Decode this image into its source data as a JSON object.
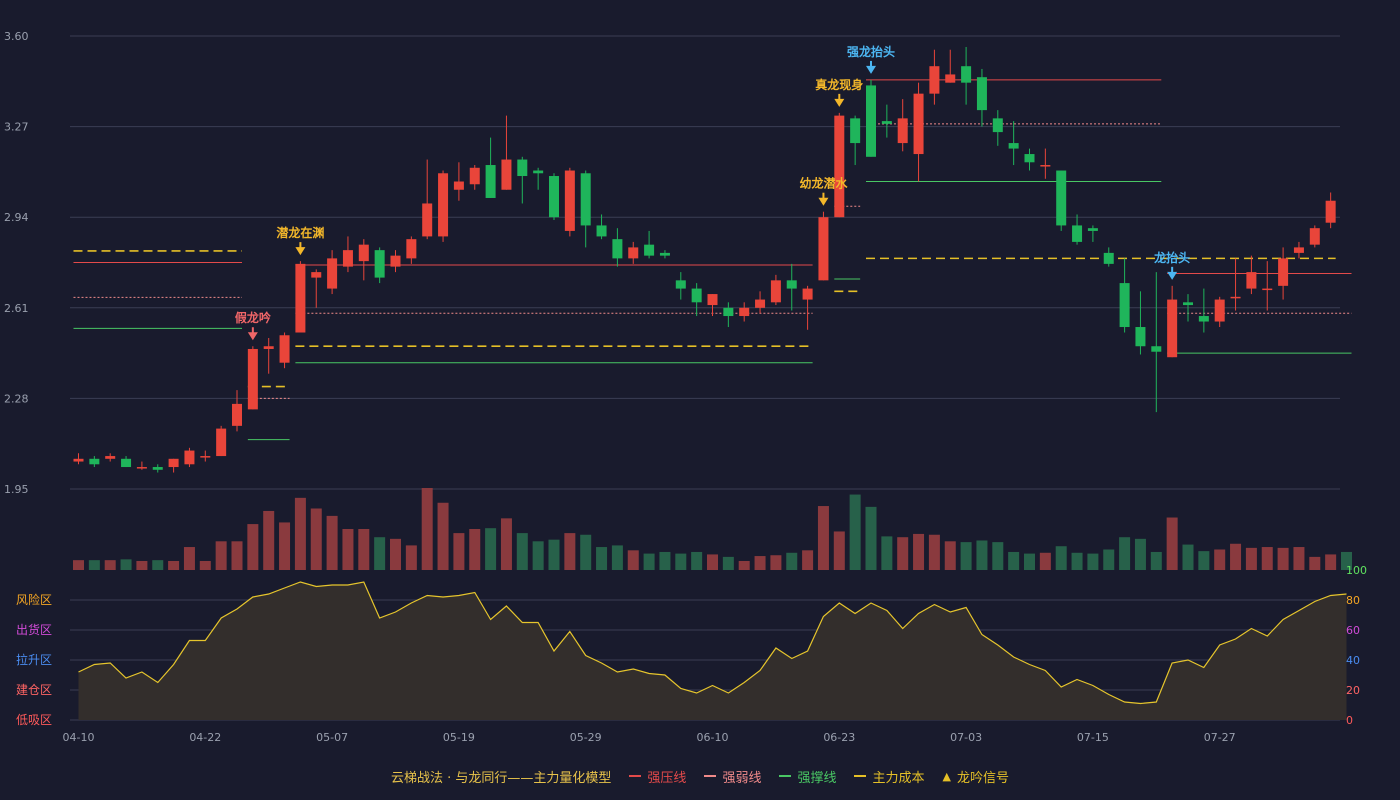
{
  "colors": {
    "background": "#191b2d",
    "up": "#e9453a",
    "down": "#1fb55b",
    "volume_up": "#8a3a3e",
    "volume_down": "#27614a",
    "grid": "#3b3e54",
    "axis_text": "#9aa0ae",
    "resist": "#e34a4a",
    "weak": "#f08a8a",
    "support": "#49c764",
    "cost": "#e5c027",
    "oscillator": "#e6c52c",
    "oscillator_fill": "#332e2c",
    "signal_gold": "#f3b72a",
    "signal_blue": "#4cb6f2",
    "signal_red": "#f06668"
  },
  "chart_data": {
    "type": "candlestick",
    "price_axis": {
      "ticks": [
        "3.60",
        "3.27",
        "2.94",
        "2.61",
        "2.28",
        "1.95"
      ],
      "ylim": [
        1.95,
        3.6
      ]
    },
    "x_tick_labels": [
      {
        "label": "04-10",
        "index": 0
      },
      {
        "label": "04-22",
        "index": 8
      },
      {
        "label": "05-07",
        "index": 16
      },
      {
        "label": "05-19",
        "index": 24
      },
      {
        "label": "05-29",
        "index": 32
      },
      {
        "label": "06-10",
        "index": 40
      },
      {
        "label": "06-23",
        "index": 48
      },
      {
        "label": "07-03",
        "index": 56
      },
      {
        "label": "07-15",
        "index": 64
      },
      {
        "label": "07-27",
        "index": 72
      }
    ],
    "candles": [
      [
        2.05,
        2.06,
        2.04,
        2.08
      ],
      [
        2.06,
        2.04,
        2.03,
        2.07
      ],
      [
        2.06,
        2.07,
        2.05,
        2.08
      ],
      [
        2.06,
        2.03,
        2.03,
        2.07
      ],
      [
        2.03,
        2.03,
        2.02,
        2.05
      ],
      [
        2.03,
        2.02,
        2.01,
        2.04
      ],
      [
        2.03,
        2.06,
        2.01,
        2.06
      ],
      [
        2.04,
        2.09,
        2.03,
        2.1
      ],
      [
        2.07,
        2.07,
        2.05,
        2.09
      ],
      [
        2.07,
        2.17,
        2.07,
        2.18
      ],
      [
        2.18,
        2.26,
        2.16,
        2.31
      ],
      [
        2.24,
        2.46,
        2.24,
        2.47
      ],
      [
        2.46,
        2.47,
        2.37,
        2.5
      ],
      [
        2.41,
        2.51,
        2.39,
        2.52
      ],
      [
        2.52,
        2.77,
        2.52,
        2.78
      ],
      [
        2.72,
        2.74,
        2.61,
        2.75
      ],
      [
        2.68,
        2.79,
        2.66,
        2.82
      ],
      [
        2.76,
        2.82,
        2.74,
        2.87
      ],
      [
        2.78,
        2.84,
        2.71,
        2.86
      ],
      [
        2.82,
        2.72,
        2.7,
        2.83
      ],
      [
        2.76,
        2.8,
        2.74,
        2.82
      ],
      [
        2.79,
        2.86,
        2.77,
        2.87
      ],
      [
        2.87,
        2.99,
        2.86,
        3.15
      ],
      [
        2.87,
        3.1,
        2.85,
        3.11
      ],
      [
        3.04,
        3.07,
        3.0,
        3.14
      ],
      [
        3.06,
        3.12,
        3.04,
        3.13
      ],
      [
        3.13,
        3.01,
        3.01,
        3.23
      ],
      [
        3.04,
        3.15,
        3.04,
        3.31
      ],
      [
        3.15,
        3.09,
        2.99,
        3.16
      ],
      [
        3.11,
        3.1,
        3.04,
        3.12
      ],
      [
        3.09,
        2.94,
        2.93,
        3.1
      ],
      [
        2.89,
        3.11,
        2.87,
        3.12
      ],
      [
        3.1,
        2.91,
        2.83,
        3.11
      ],
      [
        2.91,
        2.87,
        2.86,
        2.95
      ],
      [
        2.86,
        2.79,
        2.76,
        2.9
      ],
      [
        2.79,
        2.83,
        2.77,
        2.85
      ],
      [
        2.84,
        2.8,
        2.79,
        2.89
      ],
      [
        2.81,
        2.8,
        2.79,
        2.82
      ],
      [
        2.71,
        2.68,
        2.64,
        2.74
      ],
      [
        2.68,
        2.63,
        2.58,
        2.7
      ],
      [
        2.62,
        2.66,
        2.58,
        2.66
      ],
      [
        2.61,
        2.58,
        2.54,
        2.63
      ],
      [
        2.58,
        2.61,
        2.56,
        2.63
      ],
      [
        2.61,
        2.64,
        2.59,
        2.67
      ],
      [
        2.63,
        2.71,
        2.62,
        2.73
      ],
      [
        2.71,
        2.68,
        2.6,
        2.77
      ],
      [
        2.64,
        2.68,
        2.53,
        2.69
      ],
      [
        2.71,
        2.94,
        2.71,
        2.96
      ],
      [
        2.94,
        3.31,
        2.94,
        3.32
      ],
      [
        3.3,
        3.21,
        3.13,
        3.31
      ],
      [
        3.42,
        3.16,
        3.16,
        3.44
      ],
      [
        3.29,
        3.28,
        3.23,
        3.35
      ],
      [
        3.21,
        3.3,
        3.18,
        3.37
      ],
      [
        3.17,
        3.39,
        3.07,
        3.43
      ],
      [
        3.39,
        3.49,
        3.35,
        3.55
      ],
      [
        3.43,
        3.46,
        3.43,
        3.55
      ],
      [
        3.49,
        3.43,
        3.35,
        3.56
      ],
      [
        3.45,
        3.33,
        3.27,
        3.48
      ],
      [
        3.3,
        3.25,
        3.2,
        3.33
      ],
      [
        3.21,
        3.19,
        3.13,
        3.29
      ],
      [
        3.17,
        3.14,
        3.11,
        3.19
      ],
      [
        3.13,
        3.13,
        3.08,
        3.19
      ],
      [
        3.11,
        2.91,
        2.89,
        3.11
      ],
      [
        2.91,
        2.85,
        2.84,
        2.95
      ],
      [
        2.9,
        2.89,
        2.85,
        2.91
      ],
      [
        2.81,
        2.77,
        2.76,
        2.83
      ],
      [
        2.7,
        2.54,
        2.52,
        2.79
      ],
      [
        2.54,
        2.47,
        2.44,
        2.67
      ],
      [
        2.47,
        2.45,
        2.23,
        2.74
      ],
      [
        2.43,
        2.64,
        2.43,
        2.69
      ],
      [
        2.63,
        2.62,
        2.56,
        2.66
      ],
      [
        2.58,
        2.56,
        2.52,
        2.68
      ],
      [
        2.56,
        2.64,
        2.54,
        2.65
      ],
      [
        2.65,
        2.65,
        2.6,
        2.79
      ],
      [
        2.68,
        2.74,
        2.66,
        2.8
      ],
      [
        2.68,
        2.68,
        2.6,
        2.78
      ],
      [
        2.69,
        2.79,
        2.64,
        2.83
      ],
      [
        2.81,
        2.83,
        2.79,
        2.85
      ],
      [
        2.84,
        2.9,
        2.83,
        2.91
      ],
      [
        2.92,
        3.0,
        2.9,
        3.03
      ]
    ],
    "volume": [
      12,
      12,
      12,
      13,
      11,
      12,
      11,
      28,
      11,
      35,
      35,
      56,
      72,
      58,
      88,
      75,
      66,
      50,
      50,
      40,
      38,
      30,
      100,
      82,
      45,
      50,
      51,
      63,
      45,
      35,
      37,
      45,
      43,
      28,
      30,
      24,
      20,
      22,
      20,
      22,
      19,
      16,
      11,
      17,
      18,
      21,
      24,
      78,
      47,
      92,
      77,
      41,
      40,
      44,
      43,
      35,
      34,
      36,
      34,
      22,
      20,
      21,
      29,
      21,
      20,
      25,
      40,
      38,
      22,
      64,
      31,
      23,
      25,
      32,
      27,
      28,
      27,
      28,
      16,
      19,
      22
    ],
    "oscillator": {
      "ylim": [
        0,
        100
      ],
      "right_ticks": [
        "100",
        "80",
        "60",
        "40",
        "20",
        "0"
      ],
      "zones": [
        "风险区",
        "出货区",
        "拉升区",
        "建仓区",
        "低吸区"
      ],
      "values": [
        32,
        37,
        38,
        28,
        32,
        25,
        37,
        53,
        53,
        68,
        74,
        82,
        84,
        88,
        92,
        89,
        90,
        90,
        92,
        68,
        72,
        78,
        83,
        82,
        83,
        85,
        67,
        76,
        65,
        65,
        46,
        59,
        43,
        38,
        32,
        34,
        31,
        30,
        21,
        18,
        23,
        18,
        25,
        33,
        48,
        41,
        46,
        69,
        78,
        71,
        78,
        73,
        61,
        71,
        77,
        72,
        75,
        57,
        50,
        42,
        37,
        33,
        22,
        27,
        23,
        17,
        12,
        11,
        12,
        38,
        40,
        35,
        50,
        54,
        61,
        56,
        67,
        73,
        79,
        83,
        84
      ]
    },
    "levels": [
      {
        "kind": "cost",
        "i0": 0,
        "i1": 10,
        "price": 2.817
      },
      {
        "kind": "resist",
        "i0": 0,
        "i1": 10,
        "price": 2.775
      },
      {
        "kind": "weak",
        "i0": 0,
        "i1": 10,
        "price": 2.648
      },
      {
        "kind": "support",
        "i0": 0,
        "i1": 10,
        "price": 2.535
      },
      {
        "kind": "cost",
        "i0": 11,
        "i1": 13,
        "price": 2.323
      },
      {
        "kind": "weak",
        "i0": 11,
        "i1": 13,
        "price": 2.28
      },
      {
        "kind": "support",
        "i0": 11,
        "i1": 13,
        "price": 2.13
      },
      {
        "kind": "resist",
        "i0": 14,
        "i1": 46,
        "price": 2.766
      },
      {
        "kind": "weak",
        "i0": 14,
        "i1": 46,
        "price": 2.59
      },
      {
        "kind": "cost",
        "i0": 14,
        "i1": 46,
        "price": 2.47
      },
      {
        "kind": "support",
        "i0": 14,
        "i1": 46,
        "price": 2.41
      },
      {
        "kind": "weak",
        "i0": 48,
        "i1": 49,
        "price": 2.98
      },
      {
        "kind": "support",
        "i0": 48,
        "i1": 49,
        "price": 2.715
      },
      {
        "kind": "cost",
        "i0": 48,
        "i1": 49,
        "price": 2.67
      },
      {
        "kind": "resist",
        "i0": 50,
        "i1": 68,
        "price": 3.44
      },
      {
        "kind": "weak",
        "i0": 50,
        "i1": 68,
        "price": 3.28
      },
      {
        "kind": "support",
        "i0": 50,
        "i1": 68,
        "price": 3.07
      },
      {
        "kind": "cost",
        "i0": 50,
        "i1": 79,
        "price": 2.79
      },
      {
        "kind": "resist",
        "i0": 69,
        "i1": 80,
        "price": 2.735
      },
      {
        "kind": "weak",
        "i0": 69,
        "i1": 80,
        "price": 2.59
      },
      {
        "kind": "support",
        "i0": 69,
        "i1": 80,
        "price": 2.445
      }
    ],
    "signals": [
      {
        "index": 11,
        "label": "假龙吟",
        "color": "red"
      },
      {
        "index": 14,
        "label": "潜龙在渊",
        "color": "gold"
      },
      {
        "index": 47,
        "label": "幼龙潜水",
        "color": "gold"
      },
      {
        "index": 48,
        "label": "真龙现身",
        "color": "gold"
      },
      {
        "index": 50,
        "label": "强龙抬头",
        "color": "blue"
      },
      {
        "index": 69,
        "label": "龙抬头",
        "color": "blue"
      }
    ],
    "legend": {
      "title": "云梯战法 · 与龙同行——主力量化模型",
      "items": [
        {
          "label": "强压线",
          "kind": "resist"
        },
        {
          "label": "强弱线",
          "kind": "weak"
        },
        {
          "label": "强撑线",
          "kind": "support"
        },
        {
          "label": "主力成本",
          "kind": "cost"
        },
        {
          "label": "龙吟信号",
          "kind": "signal"
        }
      ]
    }
  }
}
